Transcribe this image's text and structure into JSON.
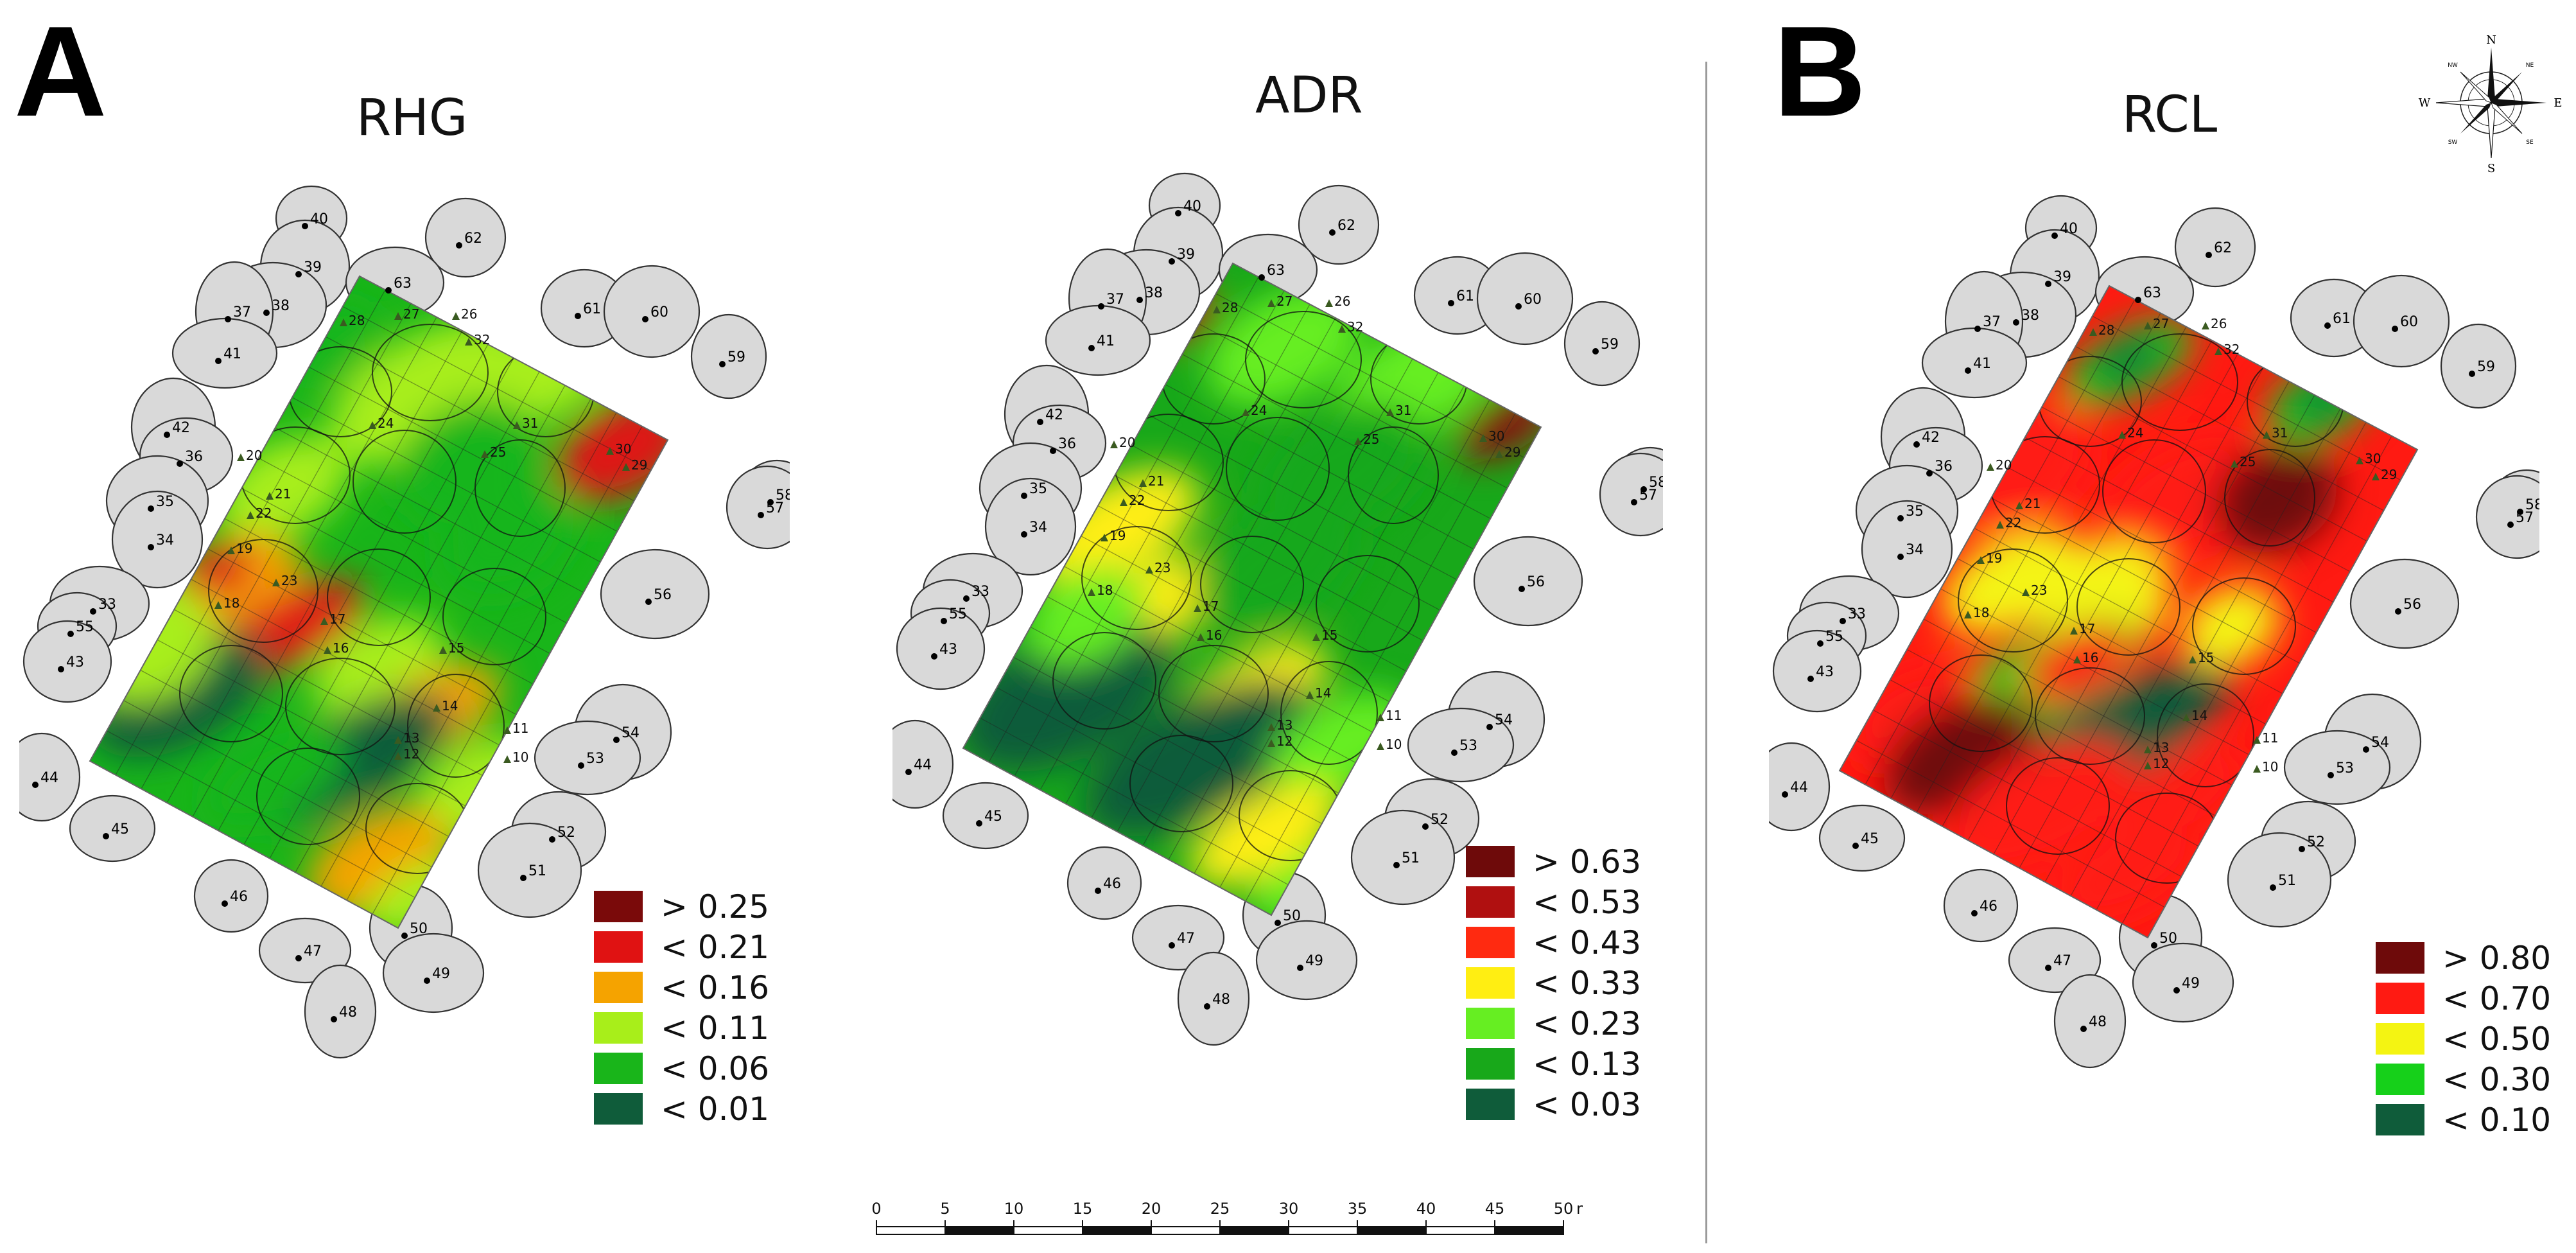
{
  "panels": {
    "a": {
      "letter": "A"
    },
    "b": {
      "letter": "B"
    }
  },
  "maps": [
    {
      "id": "rhg",
      "title": "RHG",
      "legend": [
        {
          "label": "> 0.25",
          "color": "#7a0a0a"
        },
        {
          "label": "< 0.21",
          "color": "#e01212"
        },
        {
          "label": "< 0.16",
          "color": "#f5a300"
        },
        {
          "label": "< 0.11",
          "color": "#a8ee1a"
        },
        {
          "label": "< 0.06",
          "color": "#19b51a"
        },
        {
          "label": "< 0.01",
          "color": "#0f5c3a"
        }
      ]
    },
    {
      "id": "adr",
      "title": "ADR",
      "legend": [
        {
          "label": "> 0.63",
          "color": "#6e0a0a"
        },
        {
          "label": "< 0.53",
          "color": "#b01010"
        },
        {
          "label": "< 0.43",
          "color": "#ff2a10"
        },
        {
          "label": "< 0.33",
          "color": "#ffee12"
        },
        {
          "label": "< 0.23",
          "color": "#66ee22"
        },
        {
          "label": "< 0.13",
          "color": "#18a81a"
        },
        {
          "label": "< 0.03",
          "color": "#0f5c3a"
        }
      ]
    },
    {
      "id": "rcl",
      "title": "RCL",
      "legend": [
        {
          "label": "> 0.80",
          "color": "#6e0a0a"
        },
        {
          "label": "< 0.70",
          "color": "#ff1a12"
        },
        {
          "label": "< 0.50",
          "color": "#f4f412"
        },
        {
          "label": "< 0.30",
          "color": "#16d01a"
        },
        {
          "label": "< 0.10",
          "color": "#0f5c3a"
        }
      ]
    }
  ],
  "tree_labels": [
    "40",
    "62",
    "39",
    "63",
    "38",
    "37",
    "61",
    "60",
    "41",
    "59",
    "42",
    "36",
    "35",
    "58",
    "57",
    "34",
    "33",
    "56",
    "55",
    "43",
    "54",
    "53",
    "44",
    "45",
    "52",
    "51",
    "46",
    "50",
    "47",
    "49",
    "48"
  ],
  "grid_labels": [
    "24",
    "31",
    "30",
    "29",
    "20",
    "21",
    "19",
    "18",
    "17",
    "16",
    "15",
    "14",
    "13",
    "12",
    "11",
    "10",
    "28",
    "27",
    "26",
    "25",
    "23",
    "22",
    "32"
  ],
  "scale_bar": {
    "ticks": [
      "0",
      "5",
      "10",
      "15",
      "20",
      "25",
      "30",
      "35",
      "40",
      "45",
      "50"
    ],
    "unit": "m"
  },
  "compass": {
    "n": "N",
    "s": "S",
    "e": "E",
    "w": "W",
    "ne": "NE",
    "nw": "NW",
    "se": "SE",
    "sw": "SW"
  }
}
